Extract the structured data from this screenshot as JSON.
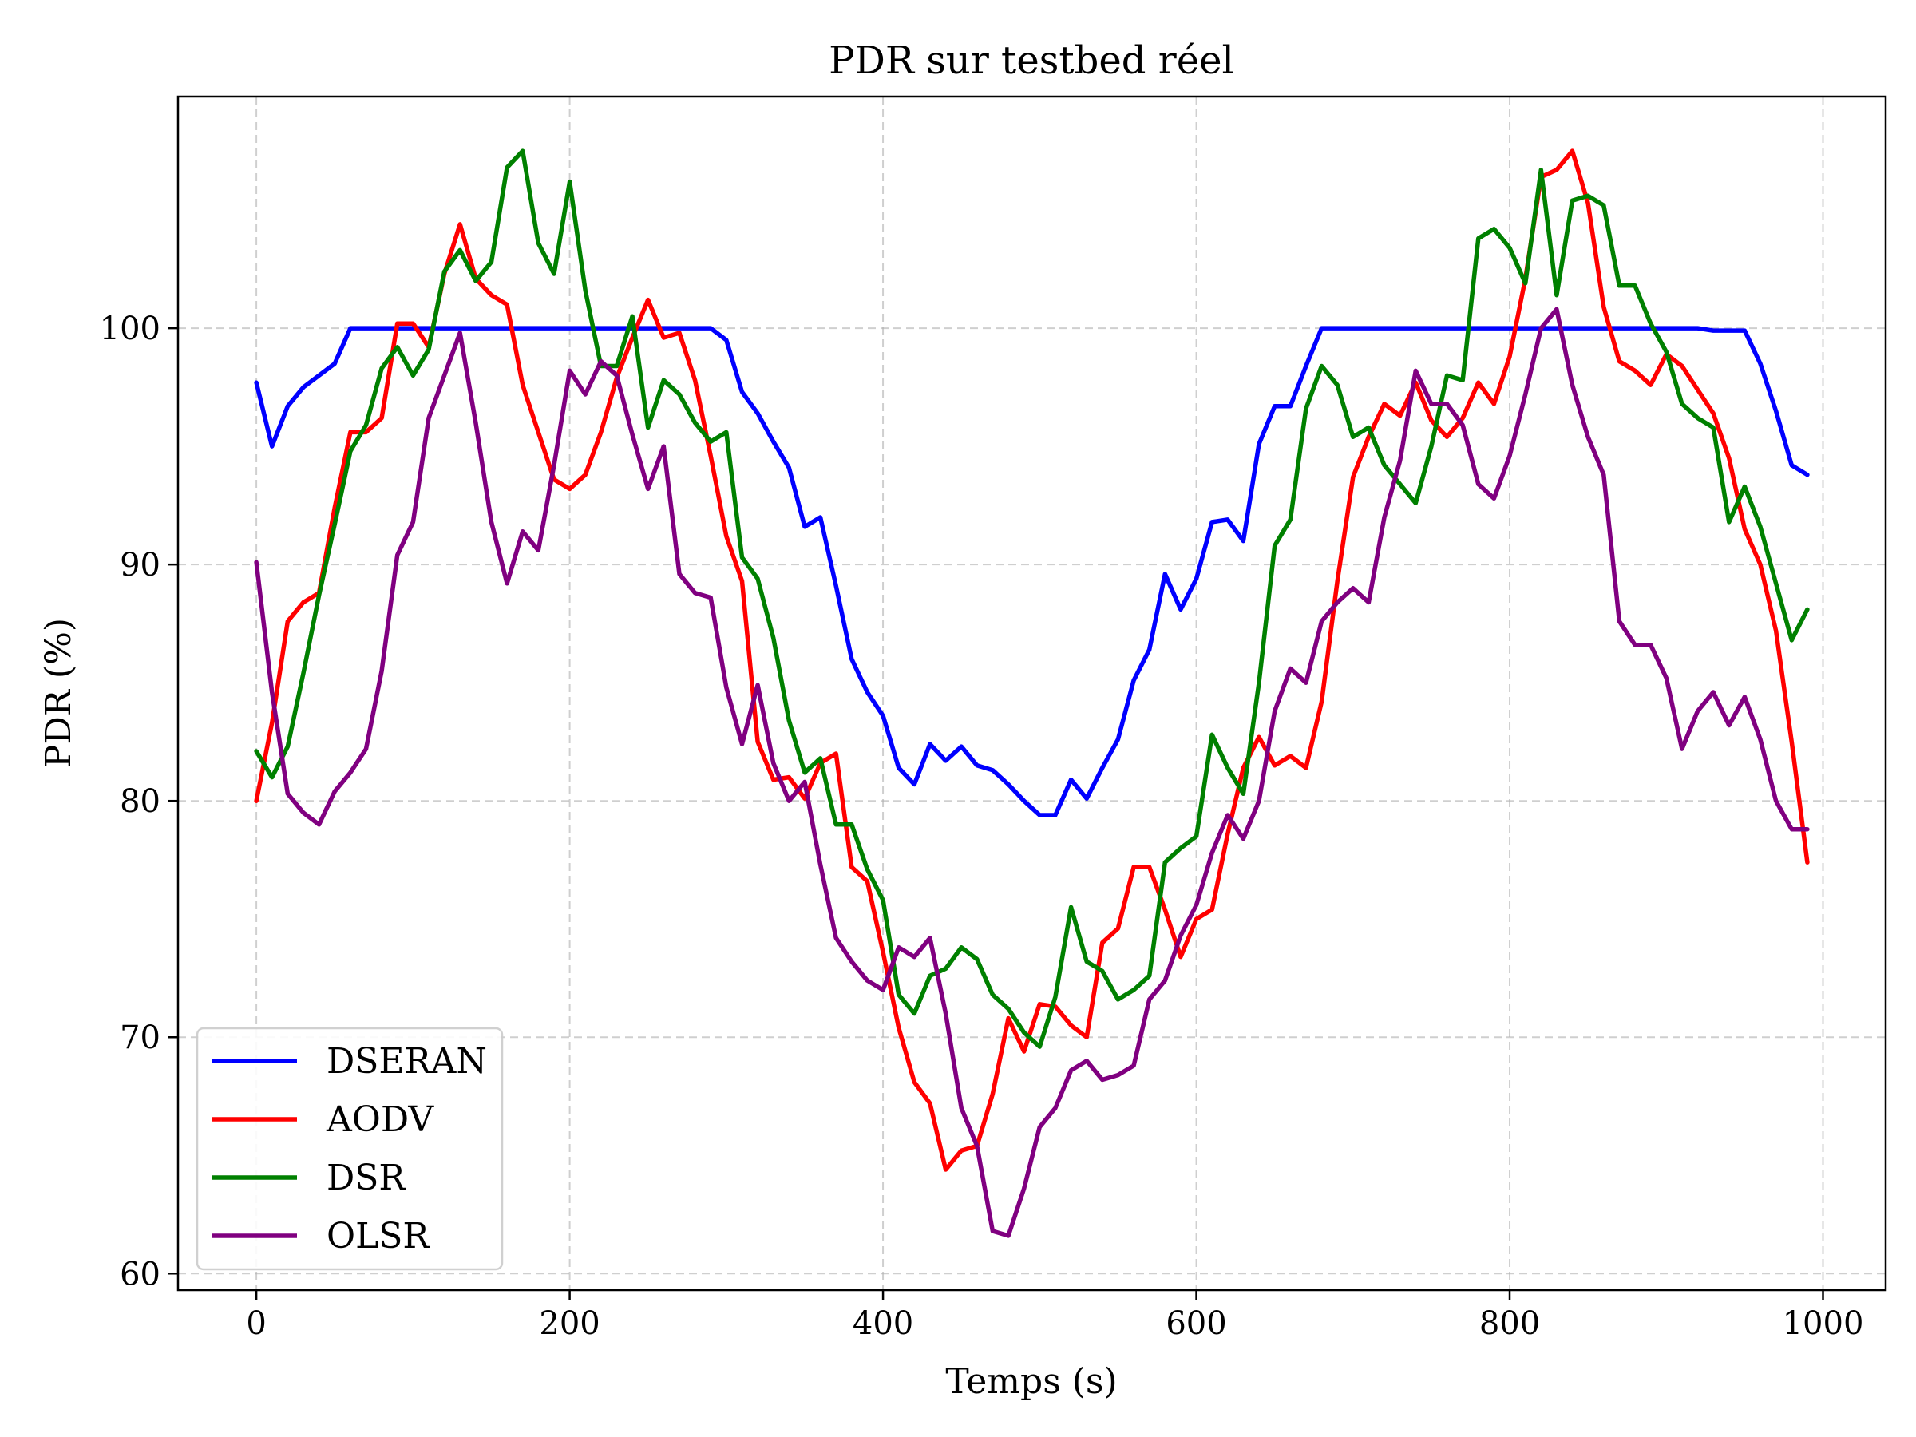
{
  "chart_data": {
    "type": "line",
    "title": "PDR sur testbed réel",
    "xlabel": "Temps (s)",
    "ylabel": "PDR (%)",
    "xlim": [
      -50,
      1040
    ],
    "ylim": [
      59.3,
      109.8
    ],
    "xticks": [
      0,
      200,
      400,
      600,
      800,
      1000
    ],
    "yticks": [
      60,
      70,
      80,
      90,
      100
    ],
    "grid": true,
    "legend_position": "lower-left",
    "x": [
      0,
      10,
      20,
      30,
      40,
      50,
      60,
      70,
      80,
      90,
      100,
      110,
      120,
      130,
      140,
      150,
      160,
      170,
      180,
      190,
      200,
      210,
      220,
      230,
      240,
      250,
      260,
      270,
      280,
      290,
      300,
      310,
      320,
      330,
      340,
      350,
      360,
      370,
      380,
      390,
      400,
      410,
      420,
      430,
      440,
      450,
      460,
      470,
      480,
      490,
      500,
      510,
      520,
      530,
      540,
      550,
      560,
      570,
      580,
      590,
      600,
      610,
      620,
      630,
      640,
      650,
      660,
      670,
      680,
      690,
      700,
      710,
      720,
      730,
      740,
      750,
      760,
      770,
      780,
      790,
      800,
      810,
      820,
      830,
      840,
      850,
      860,
      870,
      880,
      890,
      900,
      910,
      920,
      930,
      940,
      950,
      960,
      970,
      980,
      990
    ],
    "series": [
      {
        "name": "DSERAN",
        "color": "#0000ff",
        "values": [
          97.7,
          95.0,
          96.7,
          97.5,
          98.0,
          98.5,
          100,
          100,
          100,
          100,
          100,
          100,
          100,
          100,
          100,
          100,
          100,
          100,
          100,
          100,
          100,
          100,
          100,
          100,
          100,
          100,
          100,
          100,
          100,
          100,
          99.5,
          97.3,
          96.4,
          95.2,
          94.1,
          91.6,
          92.0,
          89.1,
          86.0,
          84.6,
          83.6,
          81.4,
          80.7,
          82.4,
          81.7,
          82.3,
          81.5,
          81.3,
          80.7,
          80.0,
          79.4,
          79.4,
          80.9,
          80.1,
          81.4,
          82.6,
          85.1,
          86.4,
          89.6,
          88.1,
          89.4,
          91.8,
          91.9,
          91.0,
          95.1,
          96.7,
          96.7,
          98.4,
          100,
          100,
          100,
          100,
          100,
          100,
          100,
          100,
          100,
          100,
          100,
          100,
          100,
          100,
          100,
          100,
          100,
          100,
          100,
          100,
          100,
          100,
          100,
          100,
          100,
          99.9,
          99.9,
          99.9,
          98.5,
          96.5,
          94.2,
          93.8
        ]
      },
      {
        "name": "AODV",
        "color": "#ff0000",
        "values": [
          80.0,
          83.3,
          87.6,
          88.4,
          88.8,
          92.4,
          95.6,
          95.6,
          96.2,
          100.2,
          100.2,
          99.2,
          102.3,
          104.4,
          102.1,
          101.4,
          101.0,
          97.6,
          95.6,
          93.6,
          93.2,
          93.8,
          95.6,
          97.9,
          99.6,
          101.2,
          99.6,
          99.8,
          97.8,
          94.6,
          91.2,
          89.3,
          82.5,
          80.9,
          81.0,
          80.1,
          81.6,
          82.0,
          77.2,
          76.6,
          73.6,
          70.4,
          68.1,
          67.2,
          64.4,
          65.2,
          65.4,
          67.6,
          70.8,
          69.4,
          71.4,
          71.3,
          70.5,
          70.0,
          74.0,
          74.6,
          77.2,
          77.2,
          75.4,
          73.4,
          75.0,
          75.4,
          78.6,
          81.4,
          82.7,
          81.5,
          81.9,
          81.4,
          84.2,
          89.3,
          93.7,
          95.4,
          96.8,
          96.3,
          97.7,
          96.1,
          95.4,
          96.2,
          97.7,
          96.8,
          98.8,
          102.1,
          106.4,
          106.7,
          107.5,
          105.3,
          100.9,
          98.6,
          98.2,
          97.6,
          98.9,
          98.4,
          97.4,
          96.4,
          94.5,
          91.5,
          90.0,
          87.2,
          82.5,
          77.4
        ]
      },
      {
        "name": "DSR",
        "color": "#008000",
        "values": [
          82.1,
          81.0,
          82.3,
          85.4,
          88.7,
          91.7,
          94.8,
          95.9,
          98.3,
          99.2,
          98.0,
          99.1,
          102.4,
          103.3,
          102.0,
          102.8,
          106.8,
          107.5,
          103.6,
          102.3,
          106.2,
          101.6,
          98.4,
          98.4,
          100.5,
          95.8,
          97.8,
          97.2,
          96.0,
          95.2,
          95.6,
          90.3,
          89.4,
          86.9,
          83.4,
          81.2,
          81.8,
          79.0,
          79.0,
          77.1,
          75.8,
          71.8,
          71.0,
          72.6,
          72.9,
          73.8,
          73.3,
          71.8,
          71.2,
          70.2,
          69.6,
          71.7,
          75.5,
          73.2,
          72.8,
          71.6,
          72.0,
          72.6,
          77.4,
          78.0,
          78.5,
          82.8,
          81.4,
          80.3,
          85.0,
          90.8,
          91.9,
          96.6,
          98.4,
          97.6,
          95.4,
          95.8,
          94.2,
          93.4,
          92.6,
          95.0,
          98.0,
          97.8,
          103.8,
          104.2,
          103.4,
          101.9,
          106.7,
          101.4,
          105.4,
          105.6,
          105.2,
          101.8,
          101.8,
          100.2,
          99.0,
          96.8,
          96.2,
          95.8,
          91.8,
          93.3,
          91.6,
          89.2,
          86.8,
          88.1
        ]
      },
      {
        "name": "OLSR",
        "color": "#800080",
        "values": [
          90.1,
          84.6,
          80.3,
          79.5,
          79.0,
          80.4,
          81.2,
          82.2,
          85.5,
          90.4,
          91.8,
          96.2,
          98.0,
          99.8,
          96.0,
          91.8,
          89.2,
          91.4,
          90.6,
          94.2,
          98.2,
          97.2,
          98.6,
          98.0,
          95.5,
          93.2,
          95.0,
          89.6,
          88.8,
          88.6,
          84.8,
          82.4,
          84.9,
          81.6,
          80.0,
          80.8,
          77.3,
          74.2,
          73.2,
          72.4,
          72.0,
          73.8,
          73.4,
          74.2,
          71.0,
          67.0,
          65.4,
          61.8,
          61.6,
          63.6,
          66.2,
          67.0,
          68.6,
          69.0,
          68.2,
          68.4,
          68.8,
          71.6,
          72.4,
          74.3,
          75.6,
          77.8,
          79.4,
          78.4,
          80.0,
          83.8,
          85.6,
          85.0,
          87.6,
          88.4,
          89.0,
          88.4,
          92.0,
          94.4,
          98.2,
          96.8,
          96.8,
          95.9,
          93.4,
          92.8,
          94.6,
          97.2,
          100.0,
          100.8,
          97.6,
          95.4,
          93.8,
          87.6,
          86.6,
          86.6,
          85.2,
          82.2,
          83.8,
          84.6,
          83.2,
          84.4,
          82.6,
          80.0,
          78.8,
          78.8
        ]
      }
    ]
  }
}
